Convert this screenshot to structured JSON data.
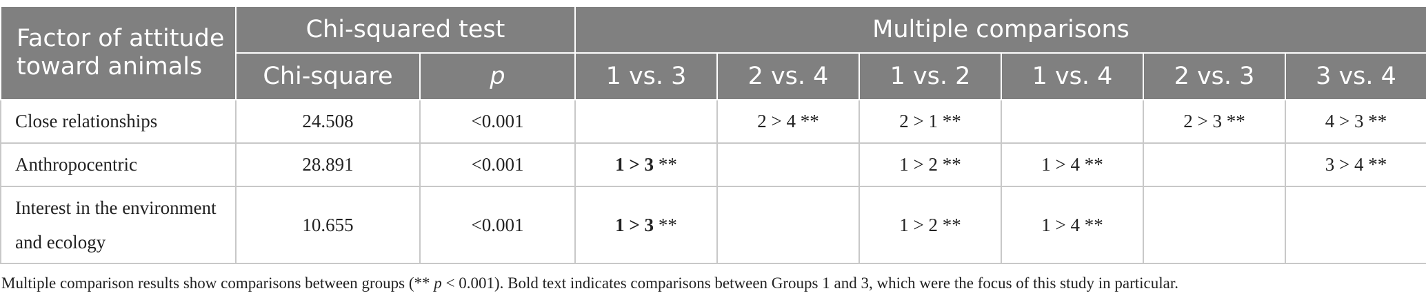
{
  "header": {
    "factor_label": "Factor of attitude toward animals",
    "chi_group": "Chi-squared test",
    "mc_group": "Multiple comparisons",
    "chi_square": "Chi-square",
    "p": "p",
    "comparisons": [
      "1 vs. 3",
      "2 vs. 4",
      "1 vs. 2",
      "1 vs. 4",
      "2 vs. 3",
      "3 vs. 4"
    ]
  },
  "rows": [
    {
      "factor": "Close relationships",
      "chi": "24.508",
      "p": "<0.001",
      "cmp": [
        {
          "bold": "",
          "rest": ""
        },
        {
          "bold": "",
          "rest": "2 > 4 **"
        },
        {
          "bold": "",
          "rest": "2 > 1 **"
        },
        {
          "bold": "",
          "rest": ""
        },
        {
          "bold": "",
          "rest": "2 > 3 **"
        },
        {
          "bold": "",
          "rest": "4 > 3 **"
        }
      ]
    },
    {
      "factor": "Anthropocentric",
      "chi": "28.891",
      "p": "<0.001",
      "cmp": [
        {
          "bold": "1 > 3",
          "rest": " **"
        },
        {
          "bold": "",
          "rest": ""
        },
        {
          "bold": "",
          "rest": "1 > 2 **"
        },
        {
          "bold": "",
          "rest": "1 > 4 **"
        },
        {
          "bold": "",
          "rest": ""
        },
        {
          "bold": "",
          "rest": "3 > 4 **"
        }
      ]
    },
    {
      "factor": "Interest in the environment and ecology",
      "chi": "10.655",
      "p": "<0.001",
      "cmp": [
        {
          "bold": "1 > 3",
          "rest": " **"
        },
        {
          "bold": "",
          "rest": ""
        },
        {
          "bold": "",
          "rest": "1 > 2 **"
        },
        {
          "bold": "",
          "rest": "1 > 4 **"
        },
        {
          "bold": "",
          "rest": ""
        },
        {
          "bold": "",
          "rest": ""
        }
      ]
    }
  ],
  "footnote": {
    "before": "Multiple comparison results show comparisons between groups (** ",
    "p": "p",
    "after": " < 0.001). Bold text indicates comparisons between Groups 1 and 3, which were the focus of this study in particular."
  }
}
